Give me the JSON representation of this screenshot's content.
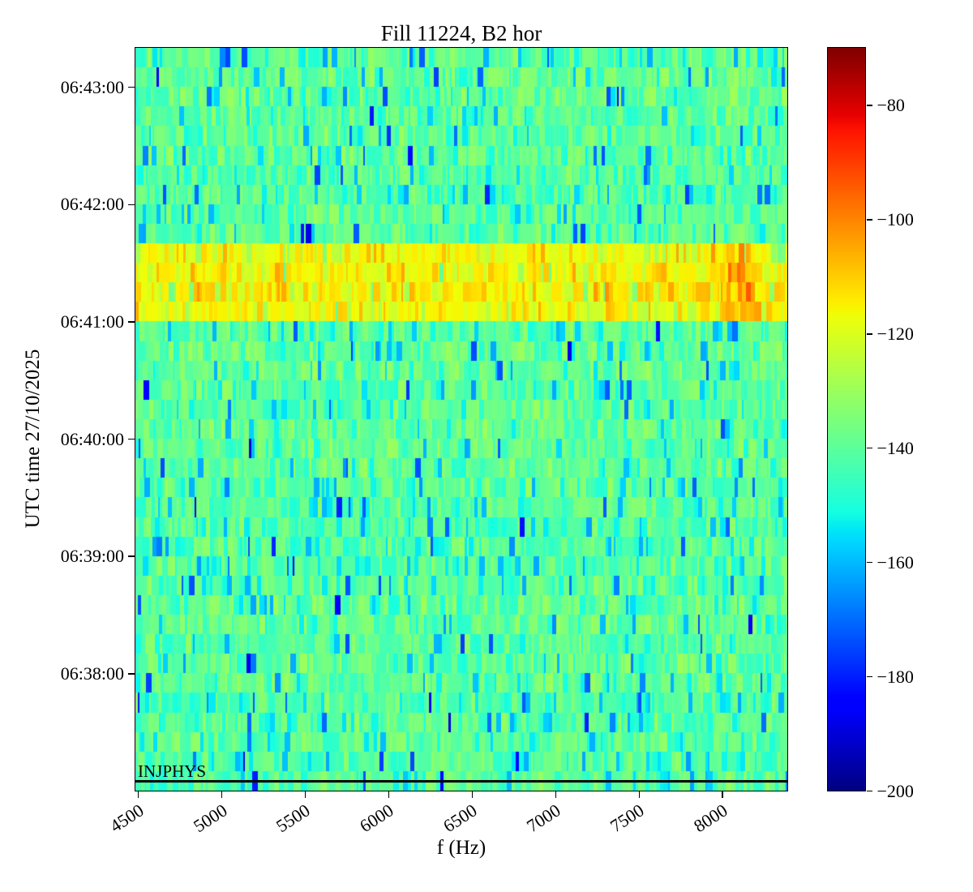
{
  "chart_data": {
    "type": "heatmap",
    "subtype": "spectrogram",
    "title": "Fill 11224, B2 hor",
    "xlabel": "f (Hz)",
    "ylabel": "UTC time 27/10/2025",
    "date": "27/10/2025",
    "x_range_hz": [
      4485,
      8390
    ],
    "x_tick_labels": [
      "4500",
      "5000",
      "5500",
      "6000",
      "6500",
      "7000",
      "7500",
      "8000"
    ],
    "y_time_range": [
      "06:37:00",
      "06:43:20"
    ],
    "y_tick_labels": [
      "06:43:00",
      "06:42:00",
      "06:41:00",
      "06:40:00",
      "06:39:00",
      "06:38:00"
    ],
    "seconds_per_row": 10,
    "colormap": "jet",
    "grid": false,
    "colorbar": {
      "vmin": -200,
      "vmax": -70,
      "tick_labels": [
        "−80",
        "−100",
        "−120",
        "−140",
        "−160",
        "−180",
        "−200"
      ],
      "position": "right"
    },
    "background_noise": {
      "mean_level_db": -140,
      "spread_db": 8,
      "description": "mostly green (~-140 dB) with vertical teal/cyan stripes (-145 to -160 dB) and sparse dark-blue lines (-165 to -195 dB)"
    },
    "excitation_band": {
      "time_start": "06:41:00",
      "time_end": "06:41:40",
      "mean_level_db": -120,
      "description": "yellow band across all frequencies",
      "hotspot": {
        "freq_center_hz": 8110,
        "freq_sigma_hz": 95,
        "peak_level_db": -100,
        "description": "orange-red patch near 8000-8250 Hz"
      }
    },
    "annotation": {
      "label": "INJPHYS",
      "time": "06:37:05",
      "style": "horizontal black line with label at left"
    }
  }
}
